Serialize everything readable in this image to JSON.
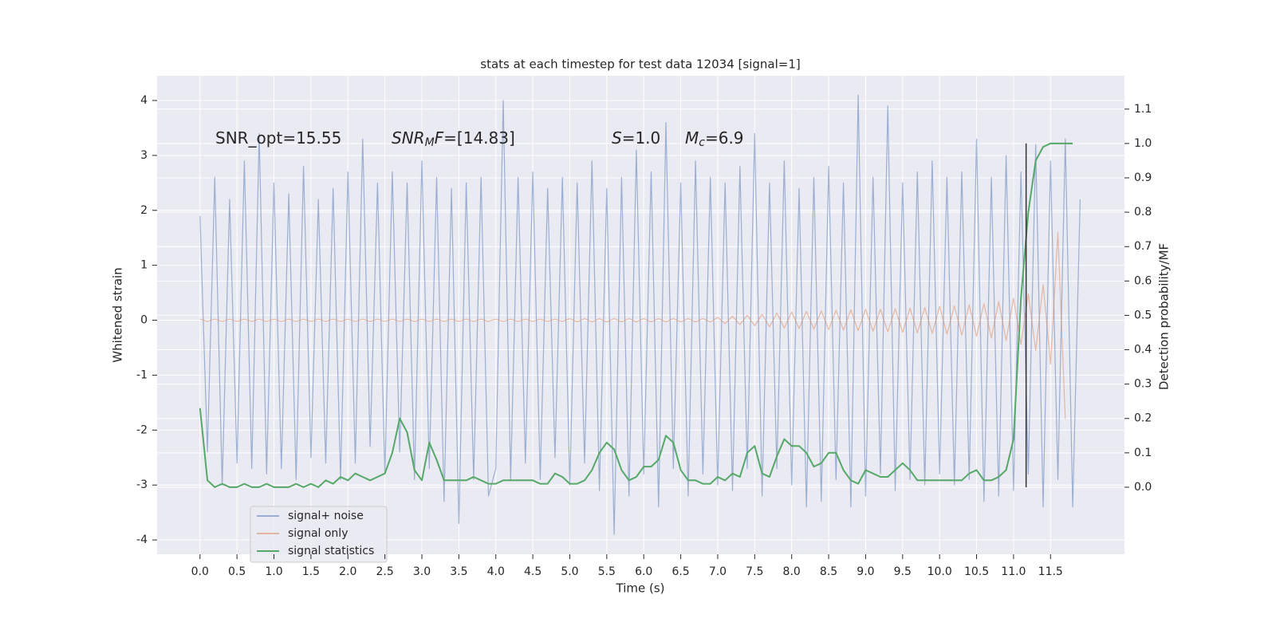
{
  "chart_data": {
    "type": "line",
    "title": "stats at each timestep for test data 12034 [signal=1]",
    "xlabel": "Time (s)",
    "ylabel": "Whitened strain",
    "y2label": "Detection probability/MF",
    "annotations": [
      [
        "SNR_opt=15.55"
      ],
      [
        "SNR",
        "M",
        "F",
        "=[14.83]"
      ],
      [
        "S",
        "=1.0"
      ],
      [
        "M",
        "c",
        "=6.9"
      ]
    ],
    "x": [
      0.0,
      0.1,
      0.2,
      0.3,
      0.4,
      0.5,
      0.6,
      0.7,
      0.8,
      0.9,
      1.0,
      1.1,
      1.2,
      1.3,
      1.4,
      1.5,
      1.6,
      1.7,
      1.8,
      1.9,
      2.0,
      2.1,
      2.2,
      2.3,
      2.4,
      2.5,
      2.6,
      2.7,
      2.8,
      2.9,
      3.0,
      3.1,
      3.2,
      3.3,
      3.4,
      3.5,
      3.6,
      3.7,
      3.8,
      3.9,
      4.0,
      4.1,
      4.2,
      4.3,
      4.4,
      4.5,
      4.6,
      4.7,
      4.8,
      4.9,
      5.0,
      5.1,
      5.2,
      5.3,
      5.4,
      5.5,
      5.6,
      5.7,
      5.8,
      5.9,
      6.0,
      6.1,
      6.2,
      6.3,
      6.4,
      6.5,
      6.6,
      6.7,
      6.8,
      6.9,
      7.0,
      7.1,
      7.2,
      7.3,
      7.4,
      7.5,
      7.6,
      7.7,
      7.8,
      7.9,
      8.0,
      8.1,
      8.2,
      8.3,
      8.4,
      8.5,
      8.6,
      8.7,
      8.8,
      8.9,
      9.0,
      9.1,
      9.2,
      9.3,
      9.4,
      9.5,
      9.6,
      9.7,
      9.8,
      9.9,
      10.0,
      10.1,
      10.2,
      10.3,
      10.4,
      10.5,
      10.6,
      10.7,
      10.8,
      10.9,
      11.0,
      11.1,
      11.2,
      11.3,
      11.4,
      11.5,
      11.6,
      11.7,
      11.8,
      11.9
    ],
    "series": [
      {
        "name": "signal+ noise",
        "color": "#4c72b0",
        "opacity": 0.5,
        "fill": true,
        "values": [
          1.9,
          -2.4,
          2.6,
          -3.0,
          2.2,
          -2.6,
          2.9,
          -2.7,
          3.4,
          -2.8,
          2.5,
          -2.7,
          2.3,
          -2.9,
          2.8,
          -2.5,
          2.2,
          -2.6,
          2.4,
          -2.9,
          2.7,
          -2.6,
          3.3,
          -2.3,
          2.5,
          -2.8,
          2.7,
          -2.4,
          2.5,
          -2.9,
          2.9,
          -2.7,
          2.6,
          -3.3,
          2.4,
          -3.7,
          2.5,
          -2.9,
          2.6,
          -3.2,
          -2.7,
          4.0,
          -2.9,
          2.6,
          -2.6,
          2.7,
          -2.9,
          2.4,
          -2.5,
          2.6,
          -3.0,
          2.5,
          -2.6,
          2.9,
          -3.1,
          2.4,
          -3.9,
          2.6,
          -3.2,
          3.1,
          -2.8,
          2.7,
          -3.4,
          3.6,
          -2.7,
          2.5,
          -3.2,
          2.9,
          -2.8,
          2.6,
          -3.0,
          2.5,
          -3.1,
          2.8,
          -2.7,
          3.4,
          -3.2,
          2.5,
          -2.7,
          2.9,
          -3.0,
          2.4,
          -3.4,
          2.6,
          -3.3,
          2.8,
          -2.9,
          2.5,
          -3.4,
          4.1,
          -3.2,
          2.6,
          -2.8,
          3.9,
          -3.1,
          2.5,
          -2.9,
          2.7,
          -3.0,
          2.9,
          -2.8,
          2.6,
          -3.0,
          2.7,
          -2.9,
          3.3,
          -3.3,
          2.6,
          -3.2,
          3.0,
          -3.1,
          2.7,
          -2.8,
          3.2,
          -3.4,
          2.9,
          -2.9,
          3.3,
          -3.4,
          2.2
        ]
      },
      {
        "name": "signal only",
        "color": "#dd8452",
        "opacity": 0.5,
        "fill": true,
        "values": [
          0.02,
          -0.02,
          0.02,
          -0.02,
          0.02,
          -0.02,
          0.02,
          -0.02,
          0.02,
          -0.02,
          0.02,
          -0.02,
          0.02,
          -0.02,
          0.02,
          -0.02,
          0.02,
          -0.02,
          0.02,
          -0.02,
          0.02,
          -0.02,
          0.02,
          -0.02,
          0.02,
          -0.02,
          0.02,
          -0.02,
          0.02,
          -0.02,
          0.02,
          -0.02,
          0.02,
          -0.02,
          0.02,
          -0.02,
          0.02,
          -0.02,
          0.02,
          -0.02,
          0.02,
          -0.02,
          0.02,
          -0.02,
          0.02,
          -0.02,
          0.02,
          -0.02,
          0.02,
          -0.02,
          0.03,
          -0.03,
          0.03,
          -0.03,
          0.03,
          -0.03,
          0.03,
          -0.03,
          0.03,
          -0.03,
          0.03,
          -0.03,
          0.03,
          -0.03,
          0.03,
          -0.03,
          0.03,
          -0.03,
          0.03,
          -0.03,
          0.05,
          -0.06,
          0.07,
          -0.08,
          0.09,
          -0.1,
          0.11,
          -0.12,
          0.13,
          -0.14,
          0.15,
          -0.15,
          0.16,
          -0.16,
          0.17,
          -0.17,
          0.18,
          -0.18,
          0.19,
          -0.19,
          0.2,
          -0.2,
          0.2,
          -0.21,
          0.21,
          -0.22,
          0.22,
          -0.23,
          0.23,
          -0.24,
          0.25,
          -0.25,
          0.26,
          -0.27,
          0.28,
          -0.29,
          0.3,
          -0.32,
          0.34,
          -0.37,
          0.4,
          -0.44,
          0.48,
          -0.55,
          0.65,
          -0.8,
          1.6,
          -1.8,
          null,
          null
        ]
      },
      {
        "name": "signal statistics",
        "color": "#55a868",
        "axis": "y2",
        "values": [
          0.23,
          0.02,
          0.0,
          0.01,
          0.0,
          0.0,
          0.01,
          0.0,
          0.0,
          0.01,
          0.0,
          0.0,
          0.0,
          0.01,
          0.0,
          0.01,
          0.0,
          0.02,
          0.01,
          0.03,
          0.02,
          0.04,
          0.03,
          0.02,
          0.03,
          0.04,
          0.1,
          0.2,
          0.16,
          0.05,
          0.02,
          0.13,
          0.08,
          0.02,
          0.02,
          0.02,
          0.02,
          0.03,
          0.02,
          0.01,
          0.01,
          0.02,
          0.02,
          0.02,
          0.02,
          0.02,
          0.01,
          0.01,
          0.04,
          0.03,
          0.01,
          0.01,
          0.02,
          0.05,
          0.1,
          0.13,
          0.11,
          0.05,
          0.02,
          0.03,
          0.06,
          0.06,
          0.08,
          0.15,
          0.13,
          0.05,
          0.02,
          0.02,
          0.01,
          0.01,
          0.03,
          0.02,
          0.04,
          0.03,
          0.1,
          0.12,
          0.04,
          0.03,
          0.09,
          0.14,
          0.12,
          0.12,
          0.1,
          0.06,
          0.07,
          0.1,
          0.1,
          0.05,
          0.02,
          0.01,
          0.05,
          0.04,
          0.03,
          0.03,
          0.05,
          0.07,
          0.05,
          0.02,
          0.02,
          0.02,
          0.02,
          0.02,
          0.02,
          0.02,
          0.04,
          0.05,
          0.02,
          0.02,
          0.03,
          0.05,
          0.14,
          0.55,
          0.8,
          0.95,
          0.99,
          1.0,
          1.0,
          1.0,
          1.0,
          null
        ]
      }
    ],
    "vline": {
      "x": 11.17,
      "color": "#333333",
      "y2": [
        0.0,
        1.0
      ]
    },
    "xlim": [
      -0.58,
      12.5
    ],
    "ylim": [
      -4.26,
      4.45
    ],
    "y2lim": [
      -0.195,
      1.197
    ],
    "xticks": [
      {
        "value": 0,
        "label": "0.0"
      },
      0.5,
      {
        "value": 1,
        "label": "1.0"
      },
      1.5,
      {
        "value": 2,
        "label": "2.0"
      },
      2.5,
      {
        "value": 3,
        "label": "3.0"
      },
      3.5,
      {
        "value": 4,
        "label": "4.0"
      },
      4.5,
      {
        "value": 5,
        "label": "5.0"
      },
      5.5,
      {
        "value": 6,
        "label": "6.0"
      },
      6.5,
      {
        "value": 7,
        "label": "7.0"
      },
      7.5,
      {
        "value": 8,
        "label": "8.0"
      },
      8.5,
      {
        "value": 9,
        "label": "9.0"
      },
      9.5,
      {
        "value": 10,
        "label": "10.0"
      },
      10.5,
      {
        "value": 11,
        "label": "11.0"
      },
      11.5
    ],
    "yticks": [
      -4,
      -3,
      -2,
      -1,
      0,
      1,
      2,
      3,
      4
    ],
    "y2ticks": [
      {
        "value": 0,
        "label": "0.0"
      },
      0.1,
      0.2,
      0.3,
      0.4,
      0.5,
      0.6,
      0.7,
      0.8,
      0.9,
      {
        "value": 1,
        "label": "1.0"
      },
      1.1
    ],
    "grid": true,
    "legend": "lower left"
  }
}
